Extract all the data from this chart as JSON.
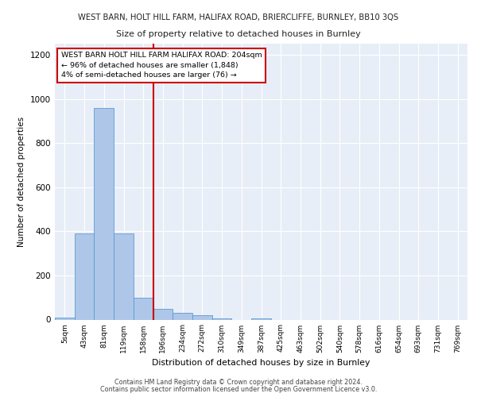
{
  "title_line1": "WEST BARN, HOLT HILL FARM, HALIFAX ROAD, BRIERCLIFFE, BURNLEY, BB10 3QS",
  "title_line2": "Size of property relative to detached houses in Burnley",
  "xlabel": "Distribution of detached houses by size in Burnley",
  "ylabel": "Number of detached properties",
  "footer_line1": "Contains HM Land Registry data © Crown copyright and database right 2024.",
  "footer_line2": "Contains public sector information licensed under the Open Government Licence v3.0.",
  "annotation_line1": "WEST BARN HOLT HILL FARM HALIFAX ROAD: 204sqm",
  "annotation_line2": "← 96% of detached houses are smaller (1,848)",
  "annotation_line3": "4% of semi-detached houses are larger (76) →",
  "red_line_x": 4.5,
  "bar_color": "#aec6e8",
  "bar_edge_color": "#5b9bd5",
  "red_line_color": "#cc0000",
  "annotation_box_color": "#cc0000",
  "background_color": "#e8eef7",
  "bins": [
    "5sqm",
    "43sqm",
    "81sqm",
    "119sqm",
    "158sqm",
    "196sqm",
    "234sqm",
    "272sqm",
    "310sqm",
    "349sqm",
    "387sqm",
    "425sqm",
    "463sqm",
    "502sqm",
    "540sqm",
    "578sqm",
    "616sqm",
    "654sqm",
    "693sqm",
    "731sqm",
    "769sqm"
  ],
  "values": [
    10,
    390,
    960,
    390,
    100,
    50,
    30,
    20,
    5,
    0,
    5,
    0,
    0,
    0,
    0,
    0,
    0,
    0,
    0,
    0,
    0
  ],
  "ylim": [
    0,
    1250
  ],
  "yticks": [
    0,
    200,
    400,
    600,
    800,
    1000,
    1200
  ]
}
